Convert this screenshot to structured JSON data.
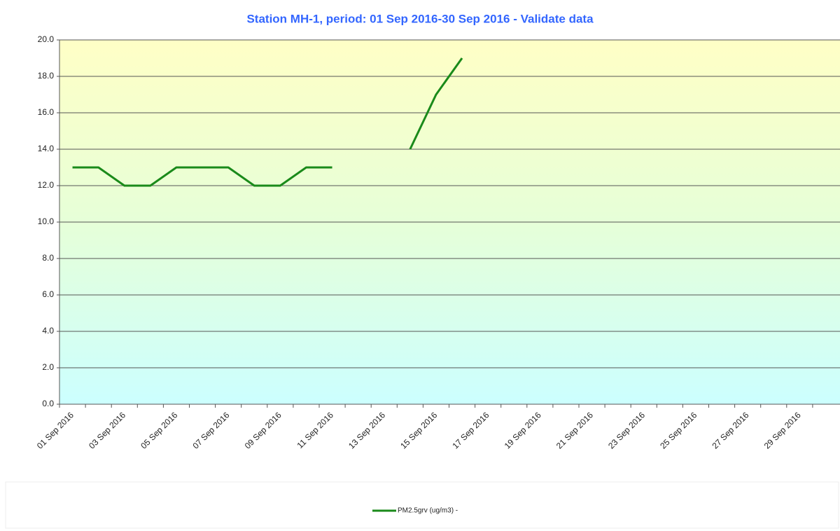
{
  "chart_data": {
    "type": "line",
    "title": "Station MH-1, period: 01 Sep 2016-30 Sep 2016 - Validate data",
    "categories": [
      "01 Sep 2016",
      null,
      "03 Sep 2016",
      null,
      "05 Sep 2016",
      null,
      "07 Sep 2016",
      null,
      "09 Sep 2016",
      null,
      "11 Sep 2016",
      null,
      "13 Sep 2016",
      null,
      "15 Sep 2016",
      null,
      "17 Sep 2016",
      null,
      "19 Sep 2016",
      null,
      "21 Sep 2016",
      null,
      "23 Sep 2016",
      null,
      "25 Sep 2016",
      null,
      "27 Sep 2016",
      null,
      "29 Sep 2016",
      null
    ],
    "series": [
      {
        "name": "PM2.5grv (ug/m3)  -",
        "color": "#1a8a1a",
        "values": [
          13,
          13,
          12,
          12,
          13,
          13,
          13,
          12,
          12,
          13,
          13,
          null,
          null,
          14,
          17,
          19,
          null,
          null,
          null,
          null,
          null,
          null,
          null,
          null,
          null,
          null,
          null,
          null,
          null,
          null
        ]
      }
    ],
    "ylim": [
      0,
      20
    ],
    "yticks": [
      {
        "value": 0,
        "label": "0.0"
      },
      {
        "value": 2,
        "label": "2.0"
      },
      {
        "value": 4,
        "label": "4.0"
      },
      {
        "value": 6,
        "label": "6.0"
      },
      {
        "value": 8,
        "label": "8.0"
      },
      {
        "value": 10,
        "label": "10.0"
      },
      {
        "value": 12,
        "label": "12.0"
      },
      {
        "value": 14,
        "label": "14.0"
      },
      {
        "value": 16,
        "label": "16.0"
      },
      {
        "value": 18,
        "label": "18.0"
      },
      {
        "value": 20,
        "label": "20.0"
      }
    ],
    "grid": true
  }
}
